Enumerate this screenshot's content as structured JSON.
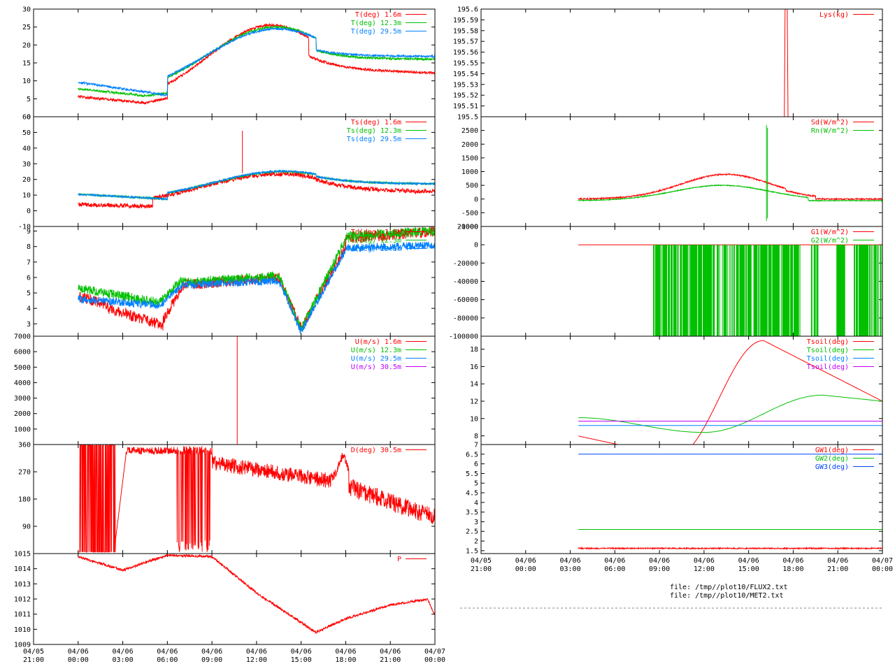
{
  "files": [
    "file: /tmp//plot10/FLUX2.txt",
    "file: /tmp//plot10/MET2.txt"
  ],
  "colors": {
    "red": "#ff0000",
    "green": "#00c000",
    "blue": "#0080ff",
    "purple": "#c000ff",
    "darkblue": "#0040ff"
  },
  "time_ticks": [
    [
      "04/05",
      "21:00"
    ],
    [
      "04/06",
      "00:00"
    ],
    [
      "04/06",
      "03:00"
    ],
    [
      "04/06",
      "06:00"
    ],
    [
      "04/06",
      "09:00"
    ],
    [
      "04/06",
      "12:00"
    ],
    [
      "04/06",
      "15:00"
    ],
    [
      "04/06",
      "18:00"
    ],
    [
      "04/06",
      "21:00"
    ],
    [
      "04/07",
      "00:00"
    ]
  ],
  "chart_data": [
    {
      "type": "line",
      "id": "T",
      "column": "left",
      "row": 0,
      "ylim": [
        0,
        30
      ],
      "yticks": [
        "0",
        "5",
        "10",
        "15",
        "20",
        "25",
        "30"
      ],
      "series": [
        {
          "name": "T(deg)  1.6m",
          "color": "red",
          "shape": "t16"
        },
        {
          "name": "T(deg) 12.3m",
          "color": "green",
          "shape": "t123"
        },
        {
          "name": "T(deg) 29.5m",
          "color": "blue",
          "shape": "t295"
        }
      ]
    },
    {
      "type": "line",
      "id": "Ts",
      "column": "left",
      "row": 1,
      "ylim": [
        -10,
        60
      ],
      "yticks": [
        "-10",
        "0",
        "10",
        "20",
        "30",
        "40",
        "50",
        "60"
      ],
      "series": [
        {
          "name": "Ts(deg)  1.6m",
          "color": "red",
          "shape": "ts16"
        },
        {
          "name": "Ts(deg) 12.3m",
          "color": "green",
          "shape": "ts123"
        },
        {
          "name": "Ts(deg) 29.5m",
          "color": "blue",
          "shape": "ts295"
        }
      ]
    },
    {
      "type": "line",
      "id": "Td",
      "column": "left",
      "row": 2,
      "ylim": [
        2.2,
        9.3
      ],
      "yticks": [
        "3",
        "4",
        "5",
        "6",
        "7",
        "8",
        "9"
      ],
      "ytickvals": [
        3,
        4,
        5,
        6,
        7,
        8,
        9
      ],
      "series": [
        {
          "name": "Td(deg)  1.6m",
          "color": "red",
          "shape": "td16"
        },
        {
          "name": "Td(deg) 12.3m",
          "color": "green",
          "shape": "td123"
        },
        {
          "name": "Td(deg) 29.5m",
          "color": "blue",
          "shape": "td295"
        }
      ]
    },
    {
      "type": "line",
      "id": "U",
      "column": "left",
      "row": 3,
      "ylim": [
        0,
        7000
      ],
      "yticks": [
        "1000",
        "2000",
        "3000",
        "4000",
        "5000",
        "6000",
        "7000"
      ],
      "ytickvals": [
        1000,
        2000,
        3000,
        4000,
        5000,
        6000,
        7000
      ],
      "series": [
        {
          "name": "U(m/s)  1.6m",
          "color": "red",
          "shape": "uspike"
        },
        {
          "name": "U(m/s) 12.3m",
          "color": "green",
          "shape": "none"
        },
        {
          "name": "U(m/s) 29.5m",
          "color": "blue",
          "shape": "none"
        },
        {
          "name": "U(m/s) 30.5m",
          "color": "purple",
          "shape": "none"
        }
      ]
    },
    {
      "type": "line",
      "id": "D",
      "column": "left",
      "row": 4,
      "ylim": [
        0,
        360
      ],
      "yticks": [
        "90",
        "180",
        "270",
        "360"
      ],
      "ytickvals": [
        90,
        180,
        270,
        360
      ],
      "series": [
        {
          "name": "D(deg)  30.5m",
          "color": "red",
          "shape": "dir"
        }
      ]
    },
    {
      "type": "line",
      "id": "P",
      "column": "left",
      "row": 5,
      "ylim": [
        1009,
        1015
      ],
      "yticks": [
        "1009",
        "1010",
        "1011",
        "1012",
        "1013",
        "1014",
        "1015"
      ],
      "series": [
        {
          "name": "P",
          "color": "red",
          "shape": "pres"
        }
      ]
    },
    {
      "type": "line",
      "id": "Lys",
      "column": "right",
      "row": 0,
      "ylim": [
        195.5,
        195.6
      ],
      "yticks": [
        "195.5",
        "195.51",
        "195.52",
        "195.53",
        "195.54",
        "195.55",
        "195.56",
        "195.57",
        "195.58",
        "195.59",
        "195.6"
      ],
      "ytickvals": [
        195.5,
        195.51,
        195.52,
        195.53,
        195.54,
        195.55,
        195.56,
        195.57,
        195.58,
        195.59,
        195.6
      ],
      "series": [
        {
          "name": "Lys(kg)",
          "color": "red",
          "shape": "lys"
        }
      ]
    },
    {
      "type": "line",
      "id": "Sd",
      "column": "right",
      "row": 1,
      "ylim": [
        -1000,
        3000
      ],
      "yticks": [
        "-1000",
        "-500",
        "0",
        "500",
        "1000",
        "1500",
        "2000",
        "2500"
      ],
      "ytickvals": [
        -1000,
        -500,
        0,
        500,
        1000,
        1500,
        2000,
        2500
      ],
      "series": [
        {
          "name": "Sd(W/m^2)",
          "color": "red",
          "shape": "sd"
        },
        {
          "name": "Rn(W/m^2)",
          "color": "green",
          "shape": "rn"
        }
      ]
    },
    {
      "type": "line",
      "id": "G",
      "column": "right",
      "row": 2,
      "ylim": [
        -100000,
        20000
      ],
      "yticks": [
        "-100000",
        "-80000",
        "-60000",
        "-40000",
        "-20000",
        "0",
        "20000"
      ],
      "ytickvals": [
        -100000,
        -80000,
        -60000,
        -40000,
        -20000,
        0,
        20000
      ],
      "series": [
        {
          "name": "G1(W/m^2)",
          "color": "red",
          "shape": "g1"
        },
        {
          "name": "G2(W/m^2)",
          "color": "green",
          "shape": "g2"
        }
      ]
    },
    {
      "type": "line",
      "id": "Tsoil",
      "column": "right",
      "row": 3,
      "ylim": [
        7,
        19.5
      ],
      "yticks": [
        "8",
        "10",
        "12",
        "14",
        "16",
        "18"
      ],
      "ytickvals": [
        8,
        10,
        12,
        14,
        16,
        18
      ],
      "series": [
        {
          "name": "Tsoil(deg)",
          "color": "red",
          "shape": "tsoil1"
        },
        {
          "name": "Tsoil(deg)",
          "color": "green",
          "shape": "tsoil2"
        },
        {
          "name": "Tsoil(deg)",
          "color": "blue",
          "shape": "tsoil3"
        },
        {
          "name": "Tsoil(deg)",
          "color": "purple",
          "shape": "tsoil4"
        }
      ]
    },
    {
      "type": "line",
      "id": "GW",
      "column": "right",
      "row": 4,
      "ylim": [
        1.35,
        7
      ],
      "yticks": [
        "1.5",
        "2",
        "2.5",
        "3",
        "3.5",
        "4",
        "4.5",
        "5",
        "5.5",
        "6",
        "6.5",
        "7"
      ],
      "ytickvals": [
        1.5,
        2,
        2.5,
        3,
        3.5,
        4,
        4.5,
        5,
        5.5,
        6,
        6.5,
        7
      ],
      "series": [
        {
          "name": "GW1(deg)",
          "color": "red",
          "shape": "gw1"
        },
        {
          "name": "GW2(deg)",
          "color": "green",
          "shape": "gw2"
        },
        {
          "name": "GW3(deg)",
          "color": "darkblue",
          "shape": "gw3"
        }
      ]
    }
  ]
}
